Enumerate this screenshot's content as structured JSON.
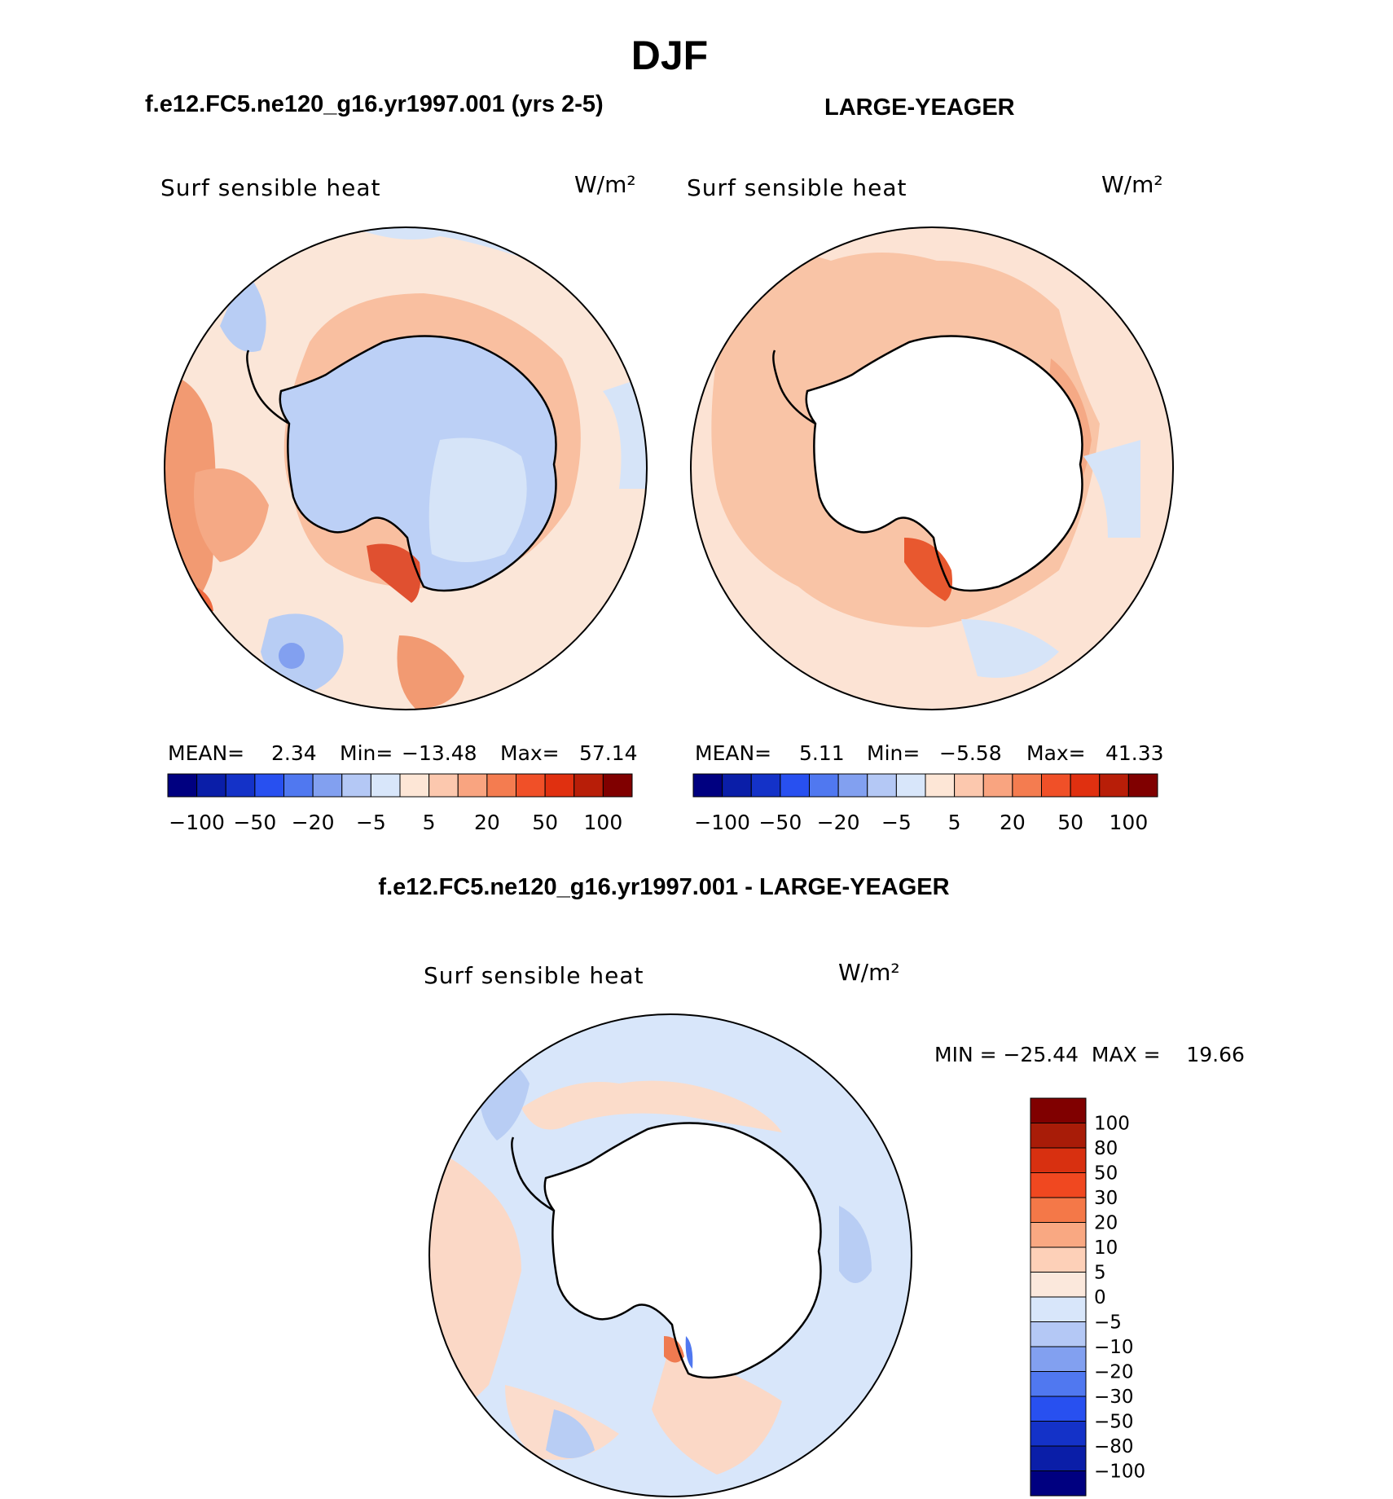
{
  "title": "DJF",
  "panel_a": {
    "header": "f.e12.FC5.ne120_g16.yr1997.001 (yrs 2-5)",
    "variable": "Surf sensible heat",
    "units": "W/m²",
    "stats": {
      "mean_label": "MEAN=",
      "mean": "2.34",
      "min_label": "Min=",
      "min": "−13.48",
      "max_label": "Max=",
      "max": "57.14"
    }
  },
  "panel_b": {
    "header": "LARGE-YEAGER",
    "variable": "Surf sensible heat",
    "units": "W/m²",
    "stats": {
      "mean_label": "MEAN=",
      "mean": "5.11",
      "min_label": "Min=",
      "min": "−5.58",
      "max_label": "Max=",
      "max": "41.33"
    }
  },
  "panel_c": {
    "header": "f.e12.FC5.ne120_g16.yr1997.001 - LARGE-YEAGER",
    "variable": "Surf sensible heat",
    "units": "W/m²",
    "minmax": "MIN = −25.44  MAX =    19.66"
  },
  "chart_data": [
    {
      "type": "heatmap",
      "title": "f.e12.FC5.ne120_g16.yr1997.001 (yrs 2-5)",
      "variable": "Surf sensible heat",
      "units": "W/m2",
      "projection": "south polar stereographic",
      "mean": 2.34,
      "min": -13.48,
      "max": 57.14,
      "colorbar_ticks": [
        "−100",
        "−50",
        "−20",
        "−5",
        "5",
        "20",
        "50",
        "100"
      ],
      "colors": [
        "#000080",
        "#0a1ea8",
        "#1432c8",
        "#2850f0",
        "#5078f0",
        "#82a0f0",
        "#b4c8f5",
        "#d8e6fa",
        "#fde6d6",
        "#fcc8ae",
        "#f9a480",
        "#f47c50",
        "#f05028",
        "#e03010",
        "#b81e08",
        "#800000"
      ]
    },
    {
      "type": "heatmap",
      "title": "LARGE-YEAGER",
      "variable": "Surf sensible heat",
      "units": "W/m2",
      "projection": "south polar stereographic",
      "mean": 5.11,
      "min": -5.58,
      "max": 41.33,
      "colorbar_ticks": [
        "−100",
        "−50",
        "−20",
        "−5",
        "5",
        "20",
        "50",
        "100"
      ],
      "colors": [
        "#000080",
        "#0a1ea8",
        "#1432c8",
        "#2850f0",
        "#5078f0",
        "#82a0f0",
        "#b4c8f5",
        "#d8e6fa",
        "#fde6d6",
        "#fcc8ae",
        "#f9a480",
        "#f47c50",
        "#f05028",
        "#e03010",
        "#b81e08",
        "#800000"
      ]
    },
    {
      "type": "heatmap",
      "title": "f.e12.FC5.ne120_g16.yr1997.001 - LARGE-YEAGER",
      "variable": "Surf sensible heat",
      "units": "W/m2",
      "projection": "south polar stereographic",
      "min": -25.44,
      "max": 19.66,
      "colorbar_levels": [
        "100",
        "80",
        "50",
        "30",
        "20",
        "10",
        "5",
        "0",
        "−5",
        "−10",
        "−20",
        "−30",
        "−50",
        "−80",
        "−100"
      ],
      "colors": [
        "#800000",
        "#a81c08",
        "#d83010",
        "#f04820",
        "#f47848",
        "#f9a882",
        "#fdd0b8",
        "#fbe8dc",
        "#d8e6fa",
        "#b4c8f5",
        "#82a0f0",
        "#5078f0",
        "#2850f0",
        "#1432c8",
        "#0a1ea8",
        "#000080"
      ]
    }
  ]
}
